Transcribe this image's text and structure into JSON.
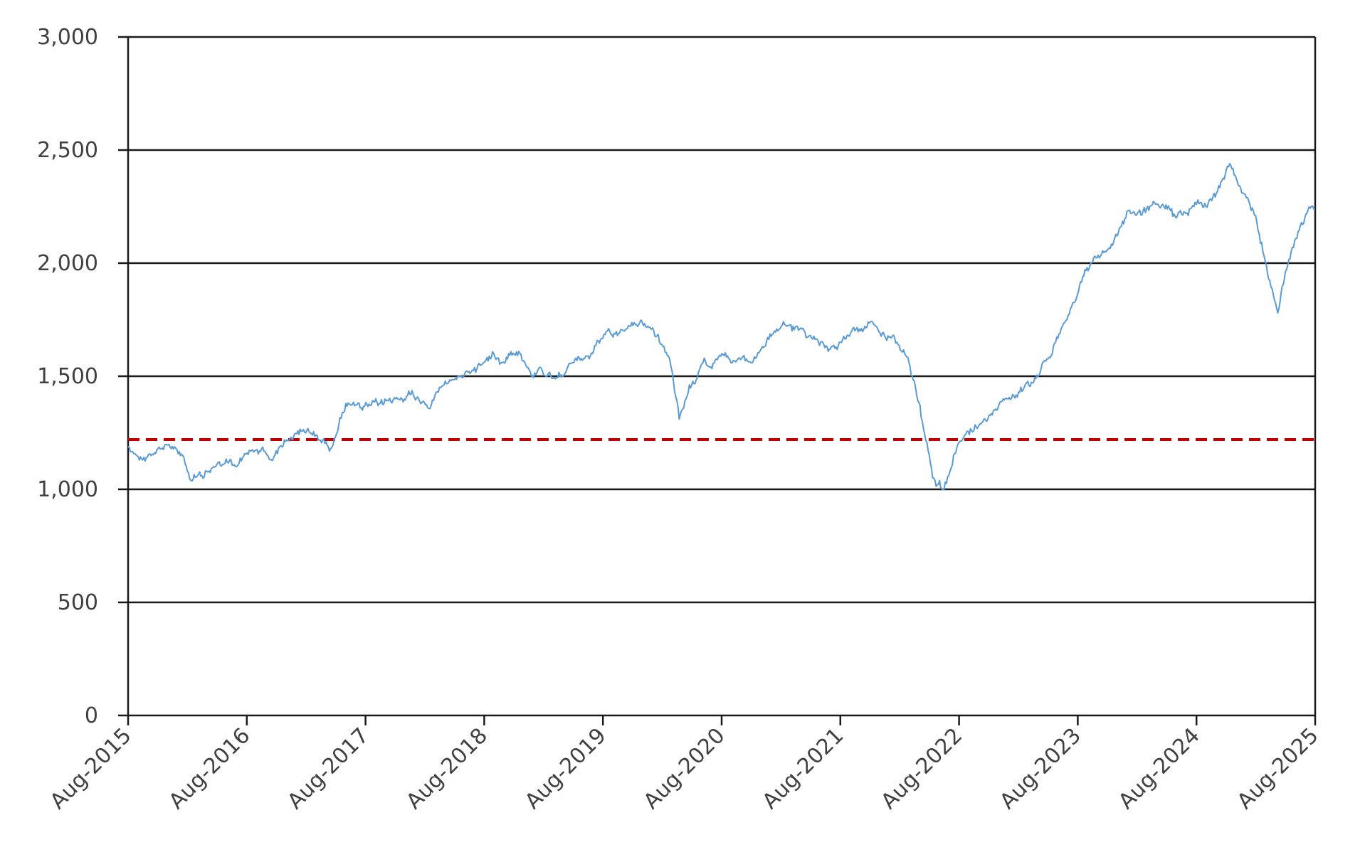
{
  "chart_data": {
    "type": "line",
    "title": "",
    "xlabel": "",
    "ylabel": "",
    "ylim": [
      0,
      3000
    ],
    "y_ticks": [
      0,
      500,
      1000,
      1500,
      2000,
      2500,
      3000
    ],
    "y_tick_labels": [
      "0",
      "500",
      "1,000",
      "1,500",
      "2,000",
      "2,500",
      "3,000"
    ],
    "x_range": [
      "2015-08-01",
      "2025-08-01"
    ],
    "x_tick_labels": [
      "Aug-2015",
      "Aug-2016",
      "Aug-2017",
      "Aug-2018",
      "Aug-2019",
      "Aug-2020",
      "Aug-2021",
      "Aug-2022",
      "Aug-2023",
      "Aug-2024",
      "Aug-2025"
    ],
    "grid": "horizontal",
    "legend": "none",
    "series": [
      {
        "color": "#5b9bd5",
        "x": [
          "2015-08-01",
          "2015-09-15",
          "2015-11-01",
          "2015-12-15",
          "2016-01-20",
          "2016-02-10",
          "2016-03-15",
          "2016-04-20",
          "2016-06-01",
          "2016-06-27",
          "2016-08-01",
          "2016-09-15",
          "2016-10-15",
          "2016-11-10",
          "2016-12-15",
          "2017-02-01",
          "2017-03-01",
          "2017-04-15",
          "2017-06-01",
          "2017-07-15",
          "2017-08-15",
          "2017-09-15",
          "2017-11-01",
          "2017-12-15",
          "2018-01-25",
          "2018-02-08",
          "2018-03-20",
          "2018-04-20",
          "2018-06-15",
          "2018-07-30",
          "2018-08-30",
          "2018-09-25",
          "2018-10-15",
          "2018-11-15",
          "2018-12-24",
          "2019-01-20",
          "2019-03-01",
          "2019-04-30",
          "2019-05-30",
          "2019-06-30",
          "2019-08-15",
          "2019-09-15",
          "2019-10-15",
          "2019-11-30",
          "2020-01-15",
          "2020-02-19",
          "2020-03-05",
          "2020-03-23",
          "2020-04-30",
          "2020-06-08",
          "2020-06-25",
          "2020-08-01",
          "2020-09-02",
          "2020-10-01",
          "2020-10-30",
          "2020-11-30",
          "2021-01-10",
          "2021-02-10",
          "2021-03-05",
          "2021-03-18",
          "2021-05-01",
          "2021-06-01",
          "2021-07-01",
          "2021-08-01",
          "2021-09-01",
          "2021-10-01",
          "2021-11-08",
          "2021-12-01",
          "2022-01-15",
          "2022-02-15",
          "2022-03-10",
          "2022-04-10",
          "2022-05-12",
          "2022-06-16",
          "2022-07-15",
          "2022-08-15",
          "2022-09-30",
          "2022-11-15",
          "2022-12-15",
          "2023-01-31",
          "2023-03-15",
          "2023-04-15",
          "2023-05-15",
          "2023-06-15",
          "2023-07-31",
          "2023-08-30",
          "2023-10-27",
          "2023-11-30",
          "2023-12-31",
          "2024-02-01",
          "2024-03-28",
          "2024-04-19",
          "2024-05-30",
          "2024-07-10",
          "2024-07-31",
          "2024-08-05",
          "2024-08-30",
          "2024-10-01",
          "2024-11-11",
          "2024-12-18",
          "2025-01-30",
          "2025-02-28",
          "2025-04-08",
          "2025-05-01",
          "2025-05-30",
          "2025-06-30",
          "2025-07-20",
          "2025-08-01"
        ],
        "y": [
          1190,
          1130,
          1180,
          1190,
          1140,
          1040,
          1060,
          1100,
          1120,
          1100,
          1160,
          1180,
          1130,
          1190,
          1230,
          1260,
          1240,
          1180,
          1380,
          1360,
          1370,
          1380,
          1400,
          1420,
          1390,
          1360,
          1450,
          1480,
          1520,
          1560,
          1600,
          1560,
          1600,
          1610,
          1500,
          1540,
          1490,
          1560,
          1570,
          1600,
          1700,
          1680,
          1710,
          1740,
          1680,
          1590,
          1480,
          1310,
          1460,
          1580,
          1540,
          1600,
          1560,
          1580,
          1560,
          1620,
          1700,
          1730,
          1700,
          1720,
          1680,
          1650,
          1620,
          1650,
          1690,
          1700,
          1740,
          1690,
          1670,
          1600,
          1500,
          1300,
          1050,
          1000,
          1150,
          1230,
          1280,
          1350,
          1400,
          1430,
          1470,
          1560,
          1600,
          1720,
          1860,
          1980,
          2050,
          2120,
          2230,
          2220,
          2260,
          2260,
          2200,
          2240,
          2260,
          2280,
          2250,
          2310,
          2440,
          2310,
          2210,
          2010,
          1780,
          1960,
          2100,
          2200,
          2250,
          2240
        ]
      }
    ],
    "reference_line": {
      "y": 1220,
      "style": "dashed",
      "color": "#c00000"
    }
  }
}
